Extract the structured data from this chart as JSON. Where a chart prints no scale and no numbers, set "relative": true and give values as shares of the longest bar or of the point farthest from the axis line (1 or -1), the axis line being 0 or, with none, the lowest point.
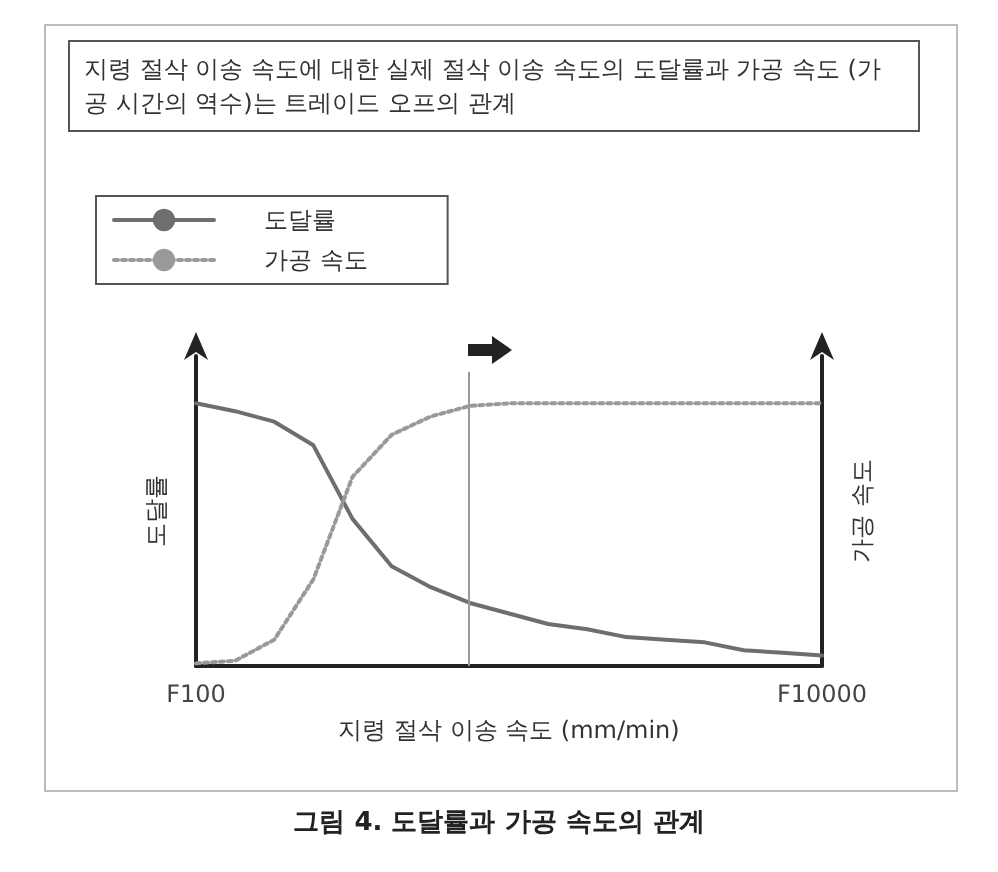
{
  "chart_data": {
    "type": "line",
    "title": "지령 절삭 이송 속도에 대한 실제 절삭 이송 속도의 도달률과 가공 속도 (가공 시간의 역수)는 트레이드 오프의 관계",
    "xlabel": "지령 절삭 이송 속도 (mm/min)",
    "ylabel": "도달률",
    "y2label": "가공 속도",
    "relative": true,
    "categories": [
      "F100",
      null,
      null,
      null,
      null,
      null,
      null,
      null,
      null,
      null,
      null,
      null,
      null,
      null,
      null,
      null,
      "F10000"
    ],
    "grid": false,
    "legend": "top left",
    "series": [
      {
        "name": "도달률",
        "color": "#6e6e6e",
        "line_style": "solid",
        "values": [
          1,
          0.97,
          0.93,
          0.84,
          0.56,
          0.38,
          0.3,
          0.24,
          0.2,
          0.16,
          0.14,
          0.11,
          0.1,
          0.09,
          0.06,
          0.05,
          0.04
        ]
      },
      {
        "name": "가공 속도",
        "color": "#999999",
        "line_style": "dotted",
        "axis": "y2",
        "values": [
          0.01,
          0.02,
          0.1,
          0.33,
          0.72,
          0.88,
          0.95,
          0.99,
          1,
          1,
          1,
          1,
          1,
          1,
          1,
          1,
          1
        ]
      }
    ],
    "annotations": [
      "그림 4. 도달률과 가공 속도의 관계"
    ]
  }
}
